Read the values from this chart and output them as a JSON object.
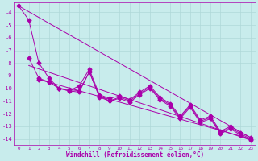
{
  "xlabel": "Windchill (Refroidissement éolien,°C)",
  "ylabel": "",
  "background_color": "#c8ecec",
  "grid_color": "#afd8d8",
  "line_color": "#aa00aa",
  "xlim": [
    -0.5,
    23.5
  ],
  "ylim": [
    -14.5,
    -3.2
  ],
  "yticks": [
    -4,
    -5,
    -6,
    -7,
    -8,
    -9,
    -10,
    -11,
    -12,
    -13,
    -14
  ],
  "xticks": [
    0,
    1,
    2,
    3,
    4,
    5,
    6,
    7,
    8,
    9,
    10,
    11,
    12,
    13,
    14,
    15,
    16,
    17,
    18,
    19,
    20,
    21,
    22,
    23
  ],
  "line1_x": [
    0,
    1,
    2,
    3,
    4,
    5,
    6,
    7,
    8,
    9,
    10,
    11,
    12,
    13,
    14,
    15,
    16,
    17,
    18,
    19,
    20,
    21,
    22,
    23
  ],
  "line1_y": [
    -3.5,
    -4.6,
    -8.0,
    -9.2,
    -10.0,
    -10.2,
    -9.8,
    -8.5,
    -10.5,
    -10.8,
    -10.6,
    -10.9,
    -10.3,
    -9.8,
    -10.7,
    -11.2,
    -12.2,
    -11.3,
    -12.5,
    -12.2,
    -13.4,
    -13.0,
    -13.5,
    -13.9
  ],
  "line2_x": [
    1,
    2,
    3,
    4,
    5,
    6,
    7,
    8,
    9,
    10,
    11,
    12,
    13,
    14,
    15,
    16,
    17,
    18,
    19,
    20,
    21,
    22,
    23
  ],
  "line2_y": [
    -7.6,
    -9.2,
    -9.5,
    -10.0,
    -10.1,
    -10.2,
    -8.7,
    -10.7,
    -11.0,
    -10.8,
    -11.1,
    -10.5,
    -10.0,
    -10.9,
    -11.4,
    -12.4,
    -11.5,
    -12.7,
    -12.4,
    -13.6,
    -13.2,
    -13.7,
    -14.1
  ],
  "line3_x": [
    2,
    3,
    4,
    5,
    6,
    7,
    8,
    9,
    10,
    11,
    12,
    13,
    14,
    15,
    16,
    17,
    18,
    19,
    20,
    21,
    22,
    23
  ],
  "line3_y": [
    -9.3,
    -9.5,
    -10.0,
    -10.2,
    -10.3,
    -8.7,
    -10.6,
    -11.0,
    -10.7,
    -11.0,
    -10.4,
    -9.9,
    -10.8,
    -11.3,
    -12.3,
    -11.4,
    -12.6,
    -12.3,
    -13.5,
    -13.1,
    -13.6,
    -14.0
  ],
  "trend1_x": [
    0,
    23
  ],
  "trend1_y": [
    -3.5,
    -13.9
  ],
  "trend2_x": [
    1,
    23
  ],
  "trend2_y": [
    -8.2,
    -14.1
  ],
  "trend3_x": [
    2,
    23
  ],
  "trend3_y": [
    -9.3,
    -14.0
  ]
}
